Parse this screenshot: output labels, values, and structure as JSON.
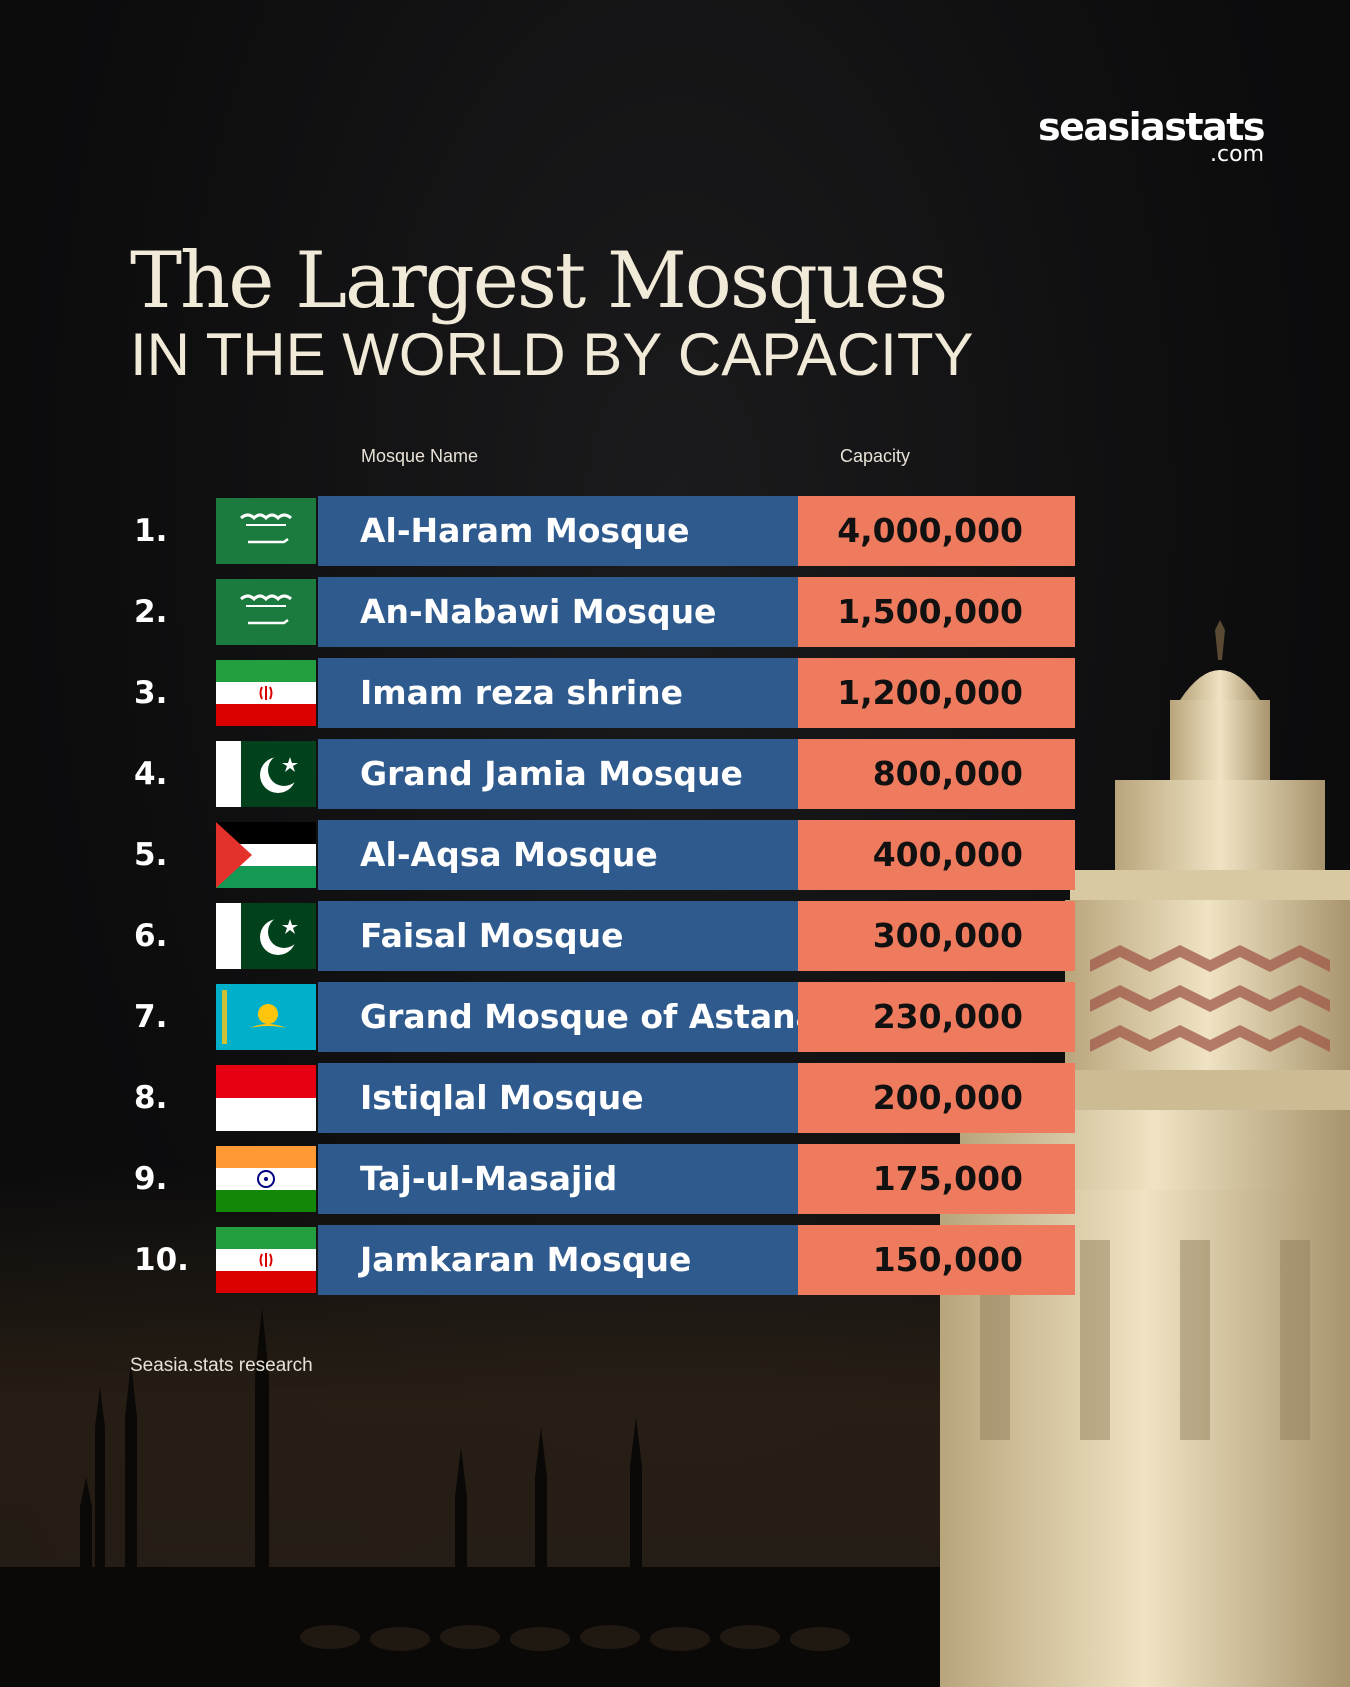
{
  "brand": {
    "name": "seasiastats",
    "suffix": ".com"
  },
  "headers": {
    "name": "Mosque Name",
    "capacity": "Capacity"
  },
  "source": "Seasia.stats research",
  "colors": {
    "name_bar": "#2f5a8e",
    "capacity_bar": "#ef7b5e",
    "background": "#0d0d0e",
    "title": "#f2ead8"
  },
  "chart_data": {
    "type": "table",
    "title": "The Largest Mosques",
    "subtitle": "IN THE WORLD BY CAPACITY",
    "columns": [
      "Mosque Name",
      "Capacity"
    ],
    "rows": [
      {
        "rank": "1.",
        "name": "Al-Haram Mosque",
        "capacity": "4,000,000",
        "value": 4000000,
        "flag": "saudi-arabia-flag"
      },
      {
        "rank": "2.",
        "name": "An-Nabawi Mosque",
        "capacity": "1,500,000",
        "value": 1500000,
        "flag": "saudi-arabia-flag"
      },
      {
        "rank": "3.",
        "name": "Imam reza shrine",
        "capacity": "1,200,000",
        "value": 1200000,
        "flag": "iran-flag"
      },
      {
        "rank": "4.",
        "name": "Grand Jamia Mosque",
        "capacity": "800,000",
        "value": 800000,
        "flag": "pakistan-flag"
      },
      {
        "rank": "5.",
        "name": "Al-Aqsa Mosque",
        "capacity": "400,000",
        "value": 400000,
        "flag": "palestine-flag"
      },
      {
        "rank": "6.",
        "name": "Faisal Mosque",
        "capacity": "300,000",
        "value": 300000,
        "flag": "pakistan-flag"
      },
      {
        "rank": "7.",
        "name": "Grand Mosque of Astana",
        "capacity": "230,000",
        "value": 230000,
        "flag": "kazakhstan-flag"
      },
      {
        "rank": "8.",
        "name": "Istiqlal Mosque",
        "capacity": "200,000",
        "value": 200000,
        "flag": "indonesia-flag"
      },
      {
        "rank": "9.",
        "name": "Taj-ul-Masajid",
        "capacity": "175,000",
        "value": 175000,
        "flag": "india-flag"
      },
      {
        "rank": "10.",
        "name": "Jamkaran Mosque",
        "capacity": "150,000",
        "value": 150000,
        "flag": "iran-flag"
      }
    ]
  }
}
